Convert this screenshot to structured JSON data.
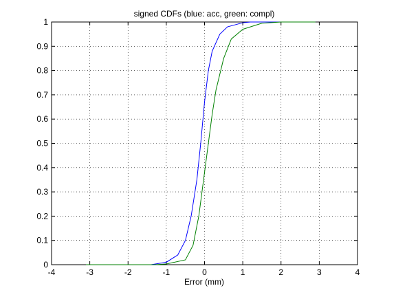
{
  "chart_data": {
    "type": "line",
    "title": "signed CDFs (blue: acc, green: compl)",
    "xlabel": "Error (mm)",
    "xlim": [
      -4,
      4
    ],
    "xticks": [
      -4,
      -3,
      -2,
      -1,
      0,
      1,
      2,
      3,
      4
    ],
    "ylim": [
      0,
      1
    ],
    "yticks": [
      0,
      0.1,
      0.2,
      0.3,
      0.4,
      0.5,
      0.6,
      0.7,
      0.8,
      0.9,
      1
    ],
    "grid": true,
    "series": [
      {
        "color": "#0000ff",
        "x": [
          -3.1,
          -1.4,
          -1.0,
          -0.7,
          -0.5,
          -0.35,
          -0.2,
          -0.1,
          0,
          0.1,
          0.2,
          0.4,
          0.6,
          1.0,
          1.2,
          2.9
        ],
        "values": [
          0,
          0,
          0.01,
          0.04,
          0.1,
          0.2,
          0.35,
          0.5,
          0.67,
          0.8,
          0.88,
          0.95,
          0.98,
          0.997,
          1,
          1
        ]
      },
      {
        "color": "#008000",
        "x": [
          -3.1,
          -1.3,
          -1.0,
          -0.5,
          -0.3,
          -0.15,
          0,
          0.1,
          0.2,
          0.3,
          0.5,
          0.7,
          1.0,
          1.5,
          2.0,
          2.9
        ],
        "values": [
          0,
          0,
          0.003,
          0.02,
          0.08,
          0.2,
          0.38,
          0.5,
          0.62,
          0.72,
          0.85,
          0.93,
          0.97,
          0.995,
          1,
          1
        ]
      }
    ]
  }
}
